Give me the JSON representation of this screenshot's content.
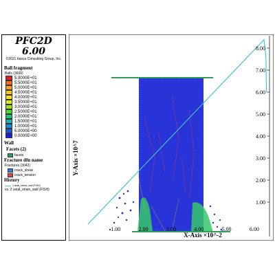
{
  "app": {
    "title": "PFC2D 6.00",
    "copyright": "©2021 Itasca Consulting Group, Inc."
  },
  "legend": {
    "ball_section": "Ball fragment",
    "balls_label": "Balls (3600)",
    "scale": [
      {
        "label": "5.9000E+01",
        "color": "#e81e1e"
      },
      {
        "label": "5.5000E+01",
        "color": "#ff6a1a"
      },
      {
        "label": "5.0000E+01",
        "color": "#ff9a1a"
      },
      {
        "label": "4.5000E+01",
        "color": "#ffc21a"
      },
      {
        "label": "4.0000E+01",
        "color": "#ffe31a"
      },
      {
        "label": "3.5000E+01",
        "color": "#d8ec1a"
      },
      {
        "label": "3.0000E+01",
        "color": "#9ce51a"
      },
      {
        "label": "2.5000E+01",
        "color": "#4fd92a"
      },
      {
        "label": "2.0000E+01",
        "color": "#1ec872"
      },
      {
        "label": "1.5000E+01",
        "color": "#1ab4b4"
      },
      {
        "label": "1.0000E+01",
        "color": "#1a8cdc"
      },
      {
        "label": "5.0000E+00",
        "color": "#1a5ae6"
      },
      {
        "label": "0.0000E+00",
        "color": "#1a1ae6"
      }
    ],
    "wall_section": "Wall",
    "facets_section": "Facets (2)",
    "facets_item": {
      "label": "facets",
      "color": "#2e9e5a"
    },
    "fracture_section": "Fracture dfn name",
    "fractures_label": "Fractures (3042)",
    "fracture_items": [
      {
        "label": "crack_shear",
        "color": "#3a78d8"
      },
      {
        "label": "crack_tension",
        "color": "#e84040"
      }
    ],
    "history_section": "History",
    "history_line": "1 axial_stress_wall (FISH)",
    "history_vs": "vs. 2 axial_strain_wall (FISH)",
    "history_color": "#40c4dc"
  },
  "chart_data": {
    "type": "line",
    "xlabel": "X-Axis ×10^-2",
    "ylabel": "Y-Axis ×10^7",
    "x_ticks": [
      "1.00",
      "2.00",
      "3.00",
      "4.00",
      "5.00",
      "6.00"
    ],
    "y_ticks": [
      "1.00",
      "2.00",
      "3.00",
      "4.00",
      "5.00",
      "6.00",
      "7.00",
      "8.00"
    ],
    "xlim": [
      0,
      6.5
    ],
    "ylim": [
      0,
      8.5
    ],
    "series": [
      {
        "name": "1 axial_stress_wall (FISH)",
        "x": [
          0.0,
          1.0,
          2.0,
          3.0,
          4.0,
          5.0,
          6.0,
          6.35,
          6.42,
          6.44
        ],
        "y": [
          0.0,
          1.32,
          2.64,
          3.96,
          5.28,
          6.6,
          7.92,
          8.38,
          7.6,
          6.0
        ]
      }
    ]
  }
}
